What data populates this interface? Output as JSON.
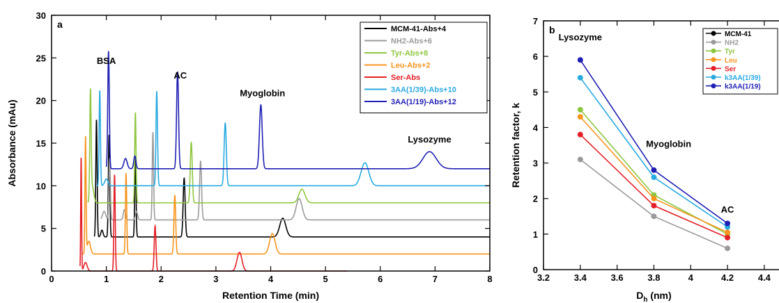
{
  "chart_data": [
    {
      "type": "line",
      "panel_label": "a",
      "xlabel": "Retention Time (min)",
      "ylabel": "Absorbance (mAu)",
      "xlim": [
        0,
        8
      ],
      "ylim": [
        0,
        30
      ],
      "xticks": [
        "0",
        "1",
        "2",
        "3",
        "4",
        "5",
        "6",
        "7",
        "8"
      ],
      "yticks": [
        "0",
        "5",
        "10",
        "15",
        "20",
        "25",
        "30"
      ],
      "legend_position": "top-right",
      "annotations": [
        {
          "text": "BSA",
          "x": 1.0,
          "y": 24.3
        },
        {
          "text": "AC",
          "x": 2.35,
          "y": 22.6
        },
        {
          "text": "Myoglobin",
          "x": 3.85,
          "y": 20.5
        },
        {
          "text": "Lysozyme",
          "x": 6.9,
          "y": 15.1
        }
      ],
      "series": [
        {
          "name": "MCM-41-Abs+4",
          "color": "#000000",
          "baseline": 4,
          "start": 0.78,
          "peaks": [
            [
              0.82,
              13.8,
              0.012
            ],
            [
              0.92,
              0.8,
              0.02
            ],
            [
              1.05,
              12.0,
              0.013
            ],
            [
              1.53,
              9.2,
              0.012
            ],
            [
              2.42,
              6.9,
              0.018
            ],
            [
              4.22,
              2.2,
              0.055
            ]
          ]
        },
        {
          "name": "NH2-Abs+6",
          "color": "#9a9a9a",
          "baseline": 6,
          "start": 0.9,
          "peaks": [
            [
              0.96,
              1.0,
              0.03
            ],
            [
              1.06,
              7.2,
              0.013
            ],
            [
              1.33,
              1.2,
              0.02
            ],
            [
              1.55,
              1.0,
              0.02
            ],
            [
              1.85,
              10.3,
              0.012
            ],
            [
              2.72,
              6.9,
              0.018
            ],
            [
              4.52,
              2.5,
              0.055
            ]
          ]
        },
        {
          "name": "Tyr-Abs+8",
          "color": "#8dc63f",
          "baseline": 8,
          "start": 0.66,
          "peaks": [
            [
              0.71,
              12.2,
              0.012
            ],
            [
              0.74,
              2.0,
              0.03
            ],
            [
              1.53,
              10.6,
              0.012
            ],
            [
              2.55,
              7.1,
              0.018
            ],
            [
              4.57,
              1.6,
              0.055
            ]
          ]
        },
        {
          "name": "Leu-Abs+2",
          "color": "#f7941d",
          "baseline": 2,
          "start": 0.55,
          "peaks": [
            [
              0.62,
              13.7,
              0.01
            ],
            [
              0.68,
              1.5,
              0.03
            ],
            [
              1.36,
              9.5,
              0.012
            ],
            [
              2.25,
              6.9,
              0.016
            ],
            [
              4.03,
              2.4,
              0.05
            ]
          ]
        },
        {
          "name": "Ser-Abs",
          "color": "#e41e26",
          "baseline": 0,
          "start": 0.52,
          "end": 5.4,
          "peaks": [
            [
              0.54,
              13.3,
              0.008
            ],
            [
              0.62,
              1.0,
              0.03
            ],
            [
              1.15,
              11.3,
              0.012
            ],
            [
              1.89,
              5.3,
              0.016
            ],
            [
              3.43,
              2.2,
              0.045
            ]
          ]
        },
        {
          "name": "3AA(1/39)-Abs+10",
          "color": "#29aae1",
          "baseline": 10,
          "start": 0.82,
          "peaks": [
            [
              0.88,
              11.2,
              0.012
            ],
            [
              1.0,
              0.8,
              0.03
            ],
            [
              1.92,
              11.1,
              0.014
            ],
            [
              3.17,
              7.4,
              0.02
            ],
            [
              5.72,
              2.7,
              0.07
            ]
          ]
        },
        {
          "name": "3AA(1/19)-Abs+12",
          "color": "#1f1fb4",
          "baseline": 12,
          "start": 1.0,
          "peaks": [
            [
              1.04,
              13.8,
              0.014
            ],
            [
              1.35,
              1.2,
              0.03
            ],
            [
              1.52,
              1.5,
              0.02
            ],
            [
              2.3,
              11.4,
              0.018
            ],
            [
              3.82,
              7.5,
              0.025
            ],
            [
              6.9,
              2.0,
              0.12
            ]
          ]
        }
      ]
    },
    {
      "type": "line",
      "panel_label": "b",
      "xlabel_main": "D",
      "xlabel_sub": "h",
      "xlabel_unit": " (nm)",
      "ylabel": "Retention factor, k",
      "xlim": [
        3.2,
        4.4
      ],
      "ylim": [
        0,
        7
      ],
      "xticks": [
        "3.2",
        "3.4",
        "3.6",
        "3.8",
        "4",
        "4.2",
        "4.4"
      ],
      "yticks": [
        "0",
        "1",
        "2",
        "3",
        "4",
        "5",
        "6",
        "7"
      ],
      "legend_position": "top-right",
      "annotations": [
        {
          "text": "Lysozyme",
          "x": 3.4,
          "y": 6.45
        },
        {
          "text": "Myoglobin",
          "x": 3.88,
          "y": 3.45
        },
        {
          "text": "AC",
          "x": 4.2,
          "y": 1.6
        }
      ],
      "x": [
        3.4,
        3.8,
        4.2
      ],
      "series": [
        {
          "name": "MCM-41",
          "color": "#000000",
          "values": [
            null,
            null,
            null
          ]
        },
        {
          "name": "NH2",
          "color": "#9a9a9a",
          "values": [
            3.1,
            1.5,
            0.6
          ]
        },
        {
          "name": "Tyr",
          "color": "#8dc63f",
          "values": [
            4.5,
            2.1,
            1.0
          ]
        },
        {
          "name": "Leu",
          "color": "#f7941d",
          "values": [
            4.3,
            2.0,
            1.05
          ]
        },
        {
          "name": "Ser",
          "color": "#e41e26",
          "values": [
            3.8,
            1.8,
            0.9
          ]
        },
        {
          "name": "k3AA(1/39)",
          "color": "#29aae1",
          "values": [
            5.4,
            2.6,
            1.2
          ]
        },
        {
          "name": "k3AA(1/19)",
          "color": "#1f1fb4",
          "values": [
            5.9,
            2.8,
            1.3
          ]
        }
      ]
    }
  ]
}
